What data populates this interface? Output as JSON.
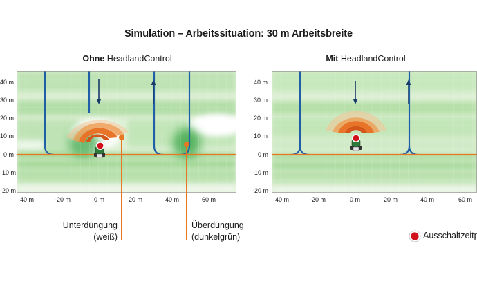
{
  "title": "Simulation – Arbeitssituation: 30 m Arbeitsbreite",
  "panels": {
    "left": {
      "title_bold": "Ohne",
      "title_rest": " HeadlandControl"
    },
    "right": {
      "title_bold": "Mit",
      "title_rest": " HeadlandControl"
    }
  },
  "y_ticks": [
    "40 m",
    "30 m",
    "20 m",
    "10 m",
    "0 m",
    "-10 m",
    "-20 m"
  ],
  "x_ticks": [
    "-40 m",
    "-20 m",
    "0 m",
    "20 m",
    "40 m",
    "60 m"
  ],
  "callouts": {
    "under": {
      "line1": "Unterdüngung",
      "line2": "(weiß)"
    },
    "over": {
      "line1": "Überdüngung",
      "line2": "(dunkelgrün)"
    }
  },
  "legend": {
    "label": "Ausschaltzeitp"
  },
  "colors": {
    "track": "#1f5fa6",
    "headland": "#e87722",
    "green_field": "#6cc46c",
    "marker": "#d0101b"
  }
}
